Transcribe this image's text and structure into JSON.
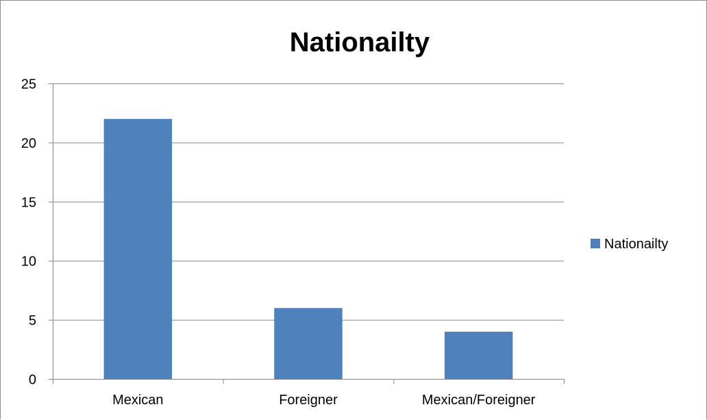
{
  "chart_data": {
    "type": "bar",
    "title": "Nationailty",
    "xlabel": "",
    "ylabel": "",
    "categories": [
      "Mexican",
      "Foreigner",
      "Mexican/Foreigner"
    ],
    "series": [
      {
        "name": "Nationailty",
        "values": [
          22,
          6,
          4
        ],
        "color": "#4f81bd"
      }
    ],
    "ylim": [
      0,
      25
    ],
    "yticks": [
      0,
      5,
      10,
      15,
      20,
      25
    ],
    "grid": true,
    "legend": "right"
  }
}
